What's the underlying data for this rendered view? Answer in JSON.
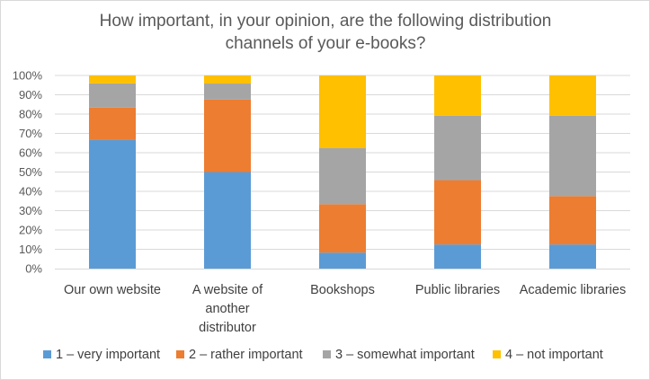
{
  "chart_data": {
    "type": "bar",
    "stacked": true,
    "normalized": true,
    "title": "How important, in your opinion, are the following distribution channels of your e-books?",
    "title_lines": [
      "How important, in your opinion, are the following distribution",
      "channels of your e-books?"
    ],
    "categories": [
      "Our own website",
      "A website of another distributor",
      "Bookshops",
      "Public libraries",
      "Academic libraries"
    ],
    "category_lines": [
      [
        "Our own website"
      ],
      [
        "A website of",
        "another",
        "distributor"
      ],
      [
        "Bookshops"
      ],
      [
        "Public libraries"
      ],
      [
        "Academic libraries"
      ]
    ],
    "series": [
      {
        "name": "1 – very important",
        "color": "#5b9bd5",
        "values": [
          66.7,
          50.0,
          8.3,
          12.5,
          12.5
        ]
      },
      {
        "name": "2 – rather important",
        "color": "#ed7d31",
        "values": [
          16.7,
          37.5,
          25.0,
          33.3,
          25.0
        ]
      },
      {
        "name": "3 – somewhat important",
        "color": "#a5a5a5",
        "values": [
          12.5,
          8.3,
          29.2,
          33.3,
          41.7
        ]
      },
      {
        "name": "4 – not important",
        "color": "#ffc000",
        "values": [
          4.1,
          4.2,
          37.5,
          20.9,
          20.8
        ]
      }
    ],
    "ylim": [
      0,
      100
    ],
    "yticks": [
      "0%",
      "10%",
      "20%",
      "30%",
      "40%",
      "50%",
      "60%",
      "70%",
      "80%",
      "90%",
      "100%"
    ],
    "grid": true,
    "legend": "bottom"
  }
}
